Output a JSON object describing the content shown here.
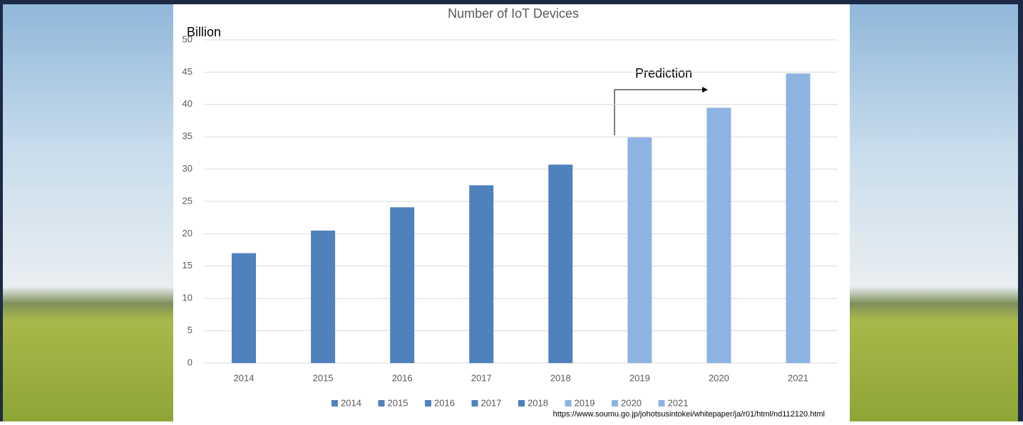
{
  "chart_data": {
    "type": "bar",
    "title": "Number of IoT Devices",
    "y_label": "Billion",
    "categories": [
      "2014",
      "2015",
      "2016",
      "2017",
      "2018",
      "2019",
      "2020",
      "2021"
    ],
    "values": [
      17.0,
      20.5,
      24.1,
      27.5,
      30.7,
      34.9,
      39.5,
      44.8
    ],
    "colors": [
      "#4f81bd",
      "#4f81bd",
      "#4f81bd",
      "#4f81bd",
      "#4f81bd",
      "#8db3e2",
      "#8db3e2",
      "#8db3e2"
    ],
    "ylim": [
      0,
      50
    ],
    "yticks": [
      0,
      5,
      10,
      15,
      20,
      25,
      30,
      35,
      40,
      45,
      50
    ],
    "grid": true,
    "legend": "bottom",
    "annotation": "Prediction",
    "source": "https://www.soumu.go.jp/johotsusintokei/whitepaper/ja/r01/html/nd112120.html"
  }
}
